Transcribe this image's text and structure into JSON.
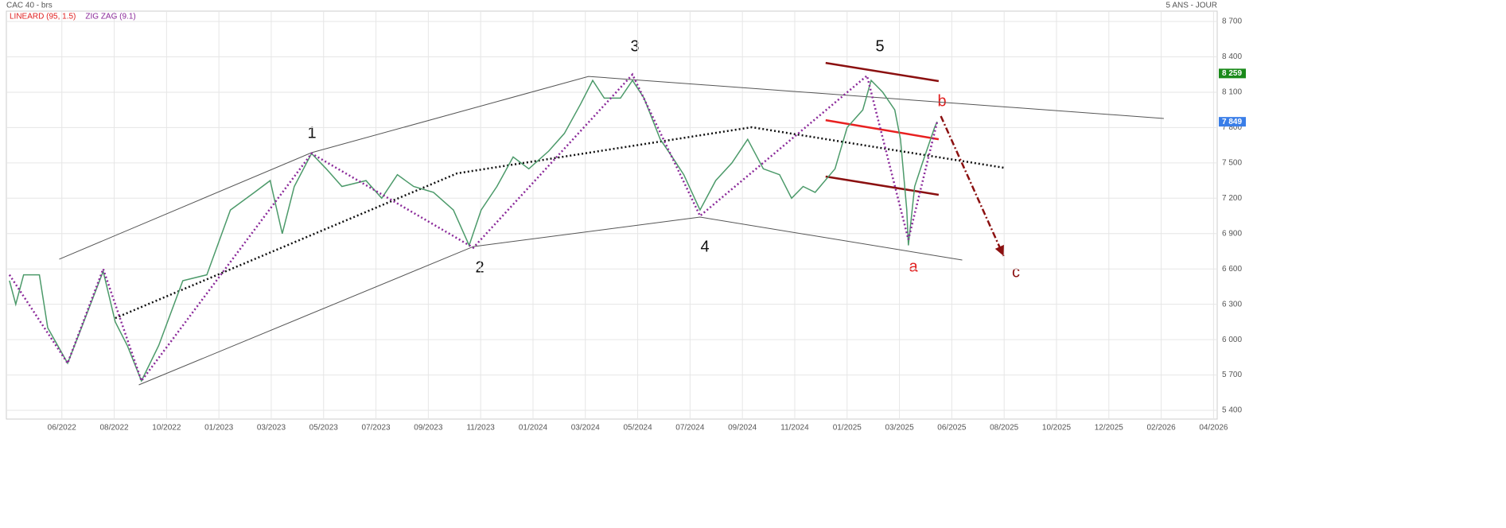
{
  "chart_data": {
    "type": "line",
    "title": "CAC 40 - brs",
    "period": "5 ANS - JOUR",
    "indicators": [
      {
        "name": "LINEARD (95, 1.5)",
        "color": "#e02020"
      },
      {
        "name": "ZIG ZAG (9.1)",
        "color": "#8b2a9a"
      }
    ],
    "xlim": [
      -1.06,
      22.07
    ],
    "xticks": [
      {
        "value": 0,
        "label": "06/2022"
      },
      {
        "value": 1,
        "label": "08/2022"
      },
      {
        "value": 2,
        "label": "10/2022"
      },
      {
        "value": 3,
        "label": "01/2023"
      },
      {
        "value": 4,
        "label": "03/2023"
      },
      {
        "value": 5,
        "label": "05/2023"
      },
      {
        "value": 6,
        "label": "07/2023"
      },
      {
        "value": 7,
        "label": "09/2023"
      },
      {
        "value": 8,
        "label": "11/2023"
      },
      {
        "value": 9,
        "label": "01/2024"
      },
      {
        "value": 10,
        "label": "03/2024"
      },
      {
        "value": 11,
        "label": "05/2024"
      },
      {
        "value": 12,
        "label": "07/2024"
      },
      {
        "value": 13,
        "label": "09/2024"
      },
      {
        "value": 14,
        "label": "11/2024"
      },
      {
        "value": 15,
        "label": "01/2025"
      },
      {
        "value": 16,
        "label": "03/2025"
      },
      {
        "value": 17,
        "label": "06/2025"
      },
      {
        "value": 18,
        "label": "08/2025"
      },
      {
        "value": 19,
        "label": "10/2025"
      },
      {
        "value": 20,
        "label": "12/2025"
      },
      {
        "value": 21,
        "label": "02/2026"
      },
      {
        "value": 22,
        "label": "04/2026"
      }
    ],
    "ylim": [
      5326,
      8788
    ],
    "yticks": [
      {
        "value": 5400,
        "label": "5 400"
      },
      {
        "value": 5700,
        "label": "5 700"
      },
      {
        "value": 6000,
        "label": "6 000"
      },
      {
        "value": 6300,
        "label": "6 300"
      },
      {
        "value": 6600,
        "label": "6 600"
      },
      {
        "value": 6900,
        "label": "6 900"
      },
      {
        "value": 7200,
        "label": "7 200"
      },
      {
        "value": 7500,
        "label": "7 500"
      },
      {
        "value": 7800,
        "label": "7 800"
      },
      {
        "value": 8100,
        "label": "8 100"
      },
      {
        "value": 8400,
        "label": "8 400"
      },
      {
        "value": 8700,
        "label": "8 700"
      }
    ],
    "grid": true,
    "series": [
      {
        "color": "#4c9a6a",
        "x": [
          -1.0,
          -0.88,
          -0.73,
          -0.43,
          -0.27,
          0.11,
          0.33,
          0.79,
          1.02,
          1.25,
          1.52,
          1.85,
          2.31,
          2.77,
          3.22,
          3.68,
          3.98,
          4.21,
          4.44,
          4.77,
          5.05,
          5.35,
          5.81,
          6.11,
          6.41,
          6.72,
          7.1,
          7.48,
          7.78,
          8.01,
          8.31,
          8.62,
          8.92,
          9.3,
          9.6,
          9.91,
          10.14,
          10.36,
          10.67,
          10.9,
          11.12,
          11.43,
          11.66,
          11.88,
          12.19,
          12.49,
          12.8,
          13.1,
          13.4,
          13.71,
          13.94,
          14.16,
          14.39,
          14.77,
          15.0,
          15.3,
          15.46,
          15.68,
          15.91,
          16.02,
          16.14,
          16.17,
          16.29,
          16.44,
          16.67,
          16.72
        ],
        "values": [
          6500,
          6300,
          6550,
          6550,
          6100,
          5800,
          6050,
          6580,
          6150,
          5950,
          5650,
          5950,
          6500,
          6550,
          7100,
          7250,
          7350,
          6900,
          7300,
          7580,
          7450,
          7300,
          7350,
          7200,
          7400,
          7300,
          7250,
          7100,
          6800,
          7100,
          7300,
          7550,
          7450,
          7600,
          7750,
          8000,
          8200,
          8050,
          8050,
          8200,
          8050,
          7700,
          7550,
          7400,
          7100,
          7350,
          7500,
          7700,
          7450,
          7400,
          7200,
          7300,
          7250,
          7450,
          7800,
          7950,
          8200,
          8100,
          7950,
          7700,
          7100,
          6800,
          7300,
          7500,
          7800,
          7849
        ]
      }
    ],
    "zigzag": {
      "color": "#8b2a9a",
      "x": [
        -1.0,
        0.11,
        0.79,
        1.52,
        4.77,
        7.86,
        10.9,
        12.19,
        15.38,
        16.17,
        16.72
      ],
      "values": [
        6550,
        5800,
        6600,
        5650,
        7580,
        6780,
        8250,
        7050,
        8240,
        6850,
        7849
      ]
    },
    "lines": [
      {
        "color": "#555555",
        "style": "solid",
        "x": [
          -0.05,
          4.77,
          10.06,
          21.05
        ],
        "values": [
          6683,
          7587,
          8234,
          7877
        ]
      },
      {
        "color": "#555555",
        "style": "solid",
        "x": [
          1.47,
          7.86,
          12.19,
          17.2
        ],
        "values": [
          5616,
          6790,
          7040,
          6676
        ]
      },
      {
        "color": "#111111",
        "style": "dotted",
        "x": [
          1.02,
          7.55,
          13.18,
          18.01
        ],
        "values": [
          6183,
          7411,
          7803,
          7458
        ]
      },
      {
        "color": "#8b1010",
        "style": "solid",
        "x": [
          14.59,
          16.75
        ],
        "values": [
          8349,
          8194
        ]
      },
      {
        "color": "#e82020",
        "style": "solid",
        "x": [
          14.59,
          16.75
        ],
        "values": [
          7863,
          7701
        ]
      },
      {
        "color": "#8b1010",
        "style": "solid",
        "x": [
          14.59,
          16.75
        ],
        "values": [
          7384,
          7229
        ]
      },
      {
        "color": "#8b1010",
        "style": "dashdot",
        "x": [
          16.79,
          17.99
        ],
        "values": [
          7897,
          6710
        ]
      }
    ],
    "price_tags": [
      {
        "value": 8259,
        "label": "8 259",
        "color": "#1a8a1a"
      },
      {
        "value": 7849,
        "label": "7 849",
        "color": "#3a7ee8"
      }
    ],
    "wave_labels": [
      "1",
      "2",
      "3",
      "4",
      "5",
      "a",
      "b",
      "c"
    ]
  }
}
